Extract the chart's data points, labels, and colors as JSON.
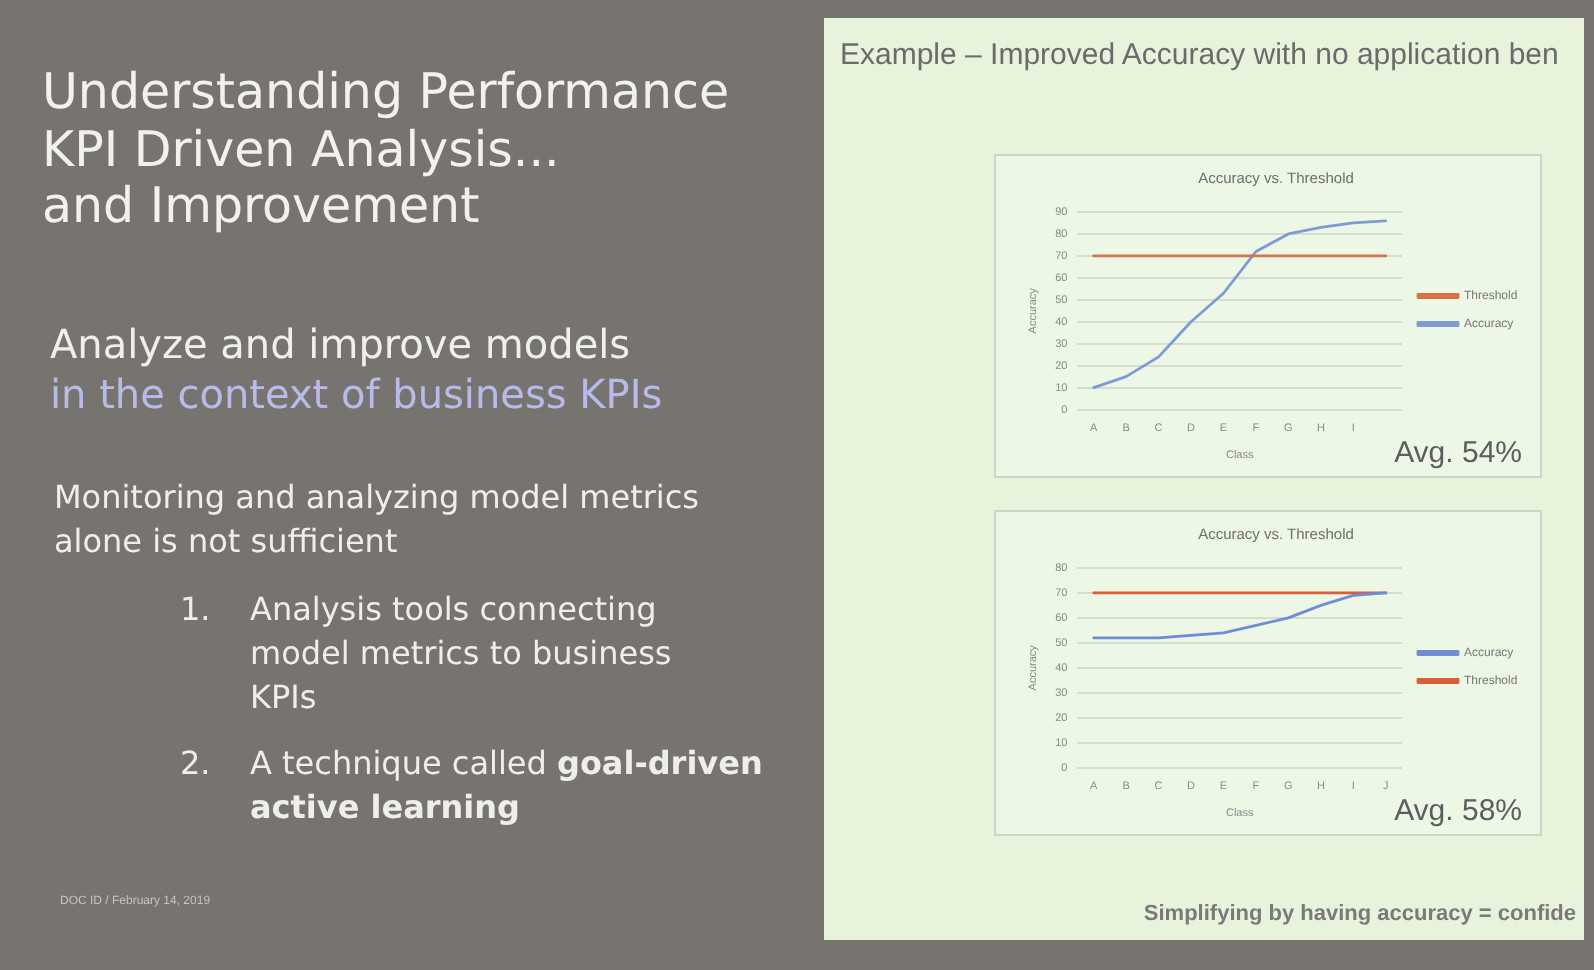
{
  "chart_data": [
    {
      "type": "line",
      "title": "Accuracy vs. Threshold",
      "xlabel": "Class",
      "ylabel": "Accuracy",
      "categories": [
        "A",
        "B",
        "C",
        "D",
        "E",
        "F",
        "G",
        "H",
        "I",
        null
      ],
      "series": [
        {
          "name": "Threshold",
          "color": "#d9714a",
          "values": [
            70,
            70,
            70,
            70,
            70,
            70,
            70,
            70,
            70,
            70
          ]
        },
        {
          "name": "Accuracy",
          "color": "#7e9bd6",
          "values": [
            10,
            15,
            24,
            40,
            53,
            72,
            80,
            83,
            85,
            86
          ]
        }
      ],
      "ylim": [
        0,
        90
      ],
      "yticks": [
        0,
        10,
        20,
        30,
        40,
        50,
        60,
        70,
        80,
        90
      ],
      "grid": "y",
      "legend": "right",
      "annotations": [
        "Understanding Performance\nKPI Driven Analysis...\nand Improvement",
        "Analyze and improve models",
        "in the context of business KPIs",
        "Monitoring and analyzing model metrics alone is not sufficient",
        "1. Analysis tools connecting model metrics to business KPIs",
        "2. A technique called",
        "goal-driven",
        "active learning",
        "DOC ID / February 14, 2019",
        "Example – Improved Accuracy with no application ben",
        "Avg. 54%"
      ]
    },
    {
      "type": "line",
      "title": "Accuracy vs. Threshold",
      "xlabel": "Class",
      "ylabel": "Accuracy",
      "categories": [
        "A",
        "B",
        "C",
        "D",
        "E",
        "F",
        "G",
        "H",
        "I",
        "J"
      ],
      "series": [
        {
          "name": "Accuracy",
          "color": "#6d8ed6",
          "values": [
            52,
            52,
            52,
            53,
            54,
            57,
            60,
            65,
            69,
            70
          ]
        },
        {
          "name": "Threshold",
          "color": "#d65f3e",
          "values": [
            70,
            70,
            70,
            70,
            70,
            70,
            70,
            70,
            70,
            70
          ]
        }
      ],
      "ylim": [
        0,
        80
      ],
      "yticks": [
        0,
        10,
        20,
        30,
        40,
        50,
        60,
        70,
        80
      ],
      "grid": "y",
      "legend": "right",
      "annotations": [
        "Avg. 58%",
        "Simplifying by having accuracy = confide"
      ]
    }
  ]
}
